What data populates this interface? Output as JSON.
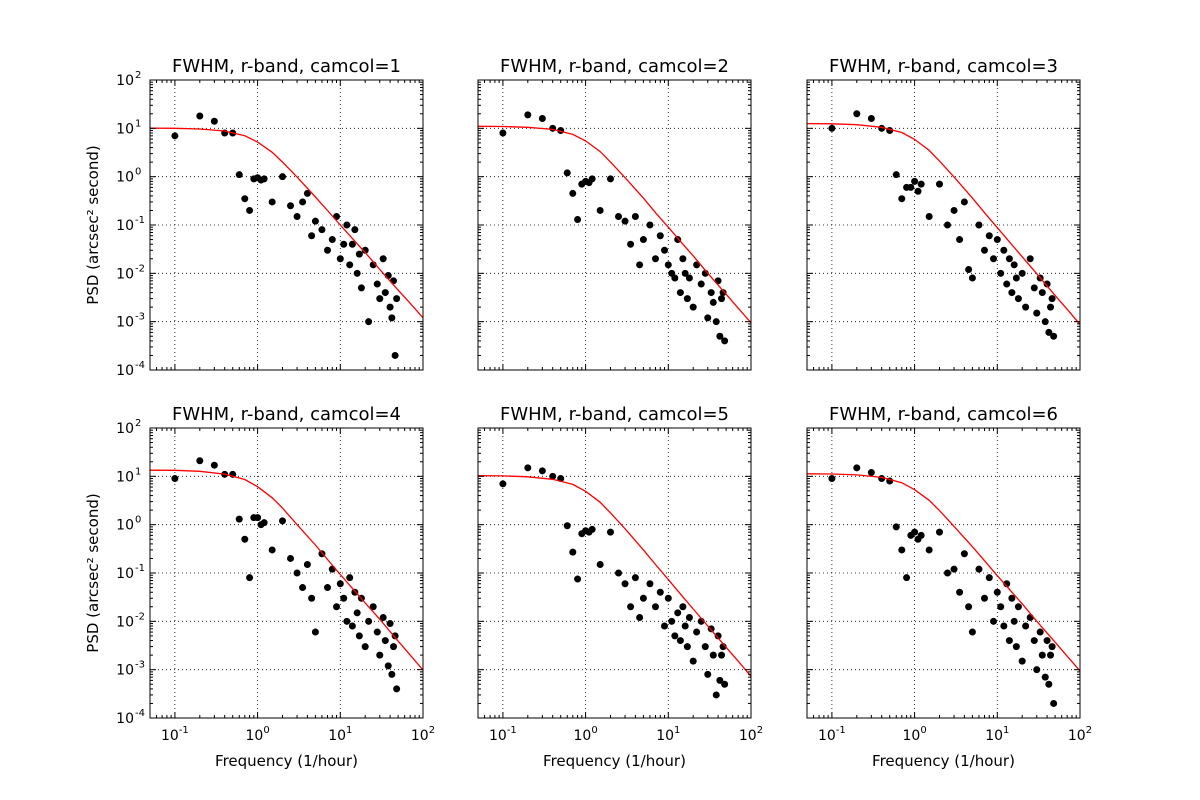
{
  "chart_data": [
    {
      "type": "scatter",
      "title": "FWHM, r-band, camcol=1",
      "xlabel": "",
      "ylabel": "PSD (arcsec² second)",
      "xscale": "log",
      "yscale": "log",
      "xlim": [
        0.05,
        100
      ],
      "ylim": [
        0.0001,
        100
      ],
      "grid": true,
      "series": [
        {
          "x": [
            0.1,
            0.2,
            0.3,
            0.4,
            0.5,
            0.6,
            0.7,
            0.8,
            0.9,
            1.0,
            1.1,
            1.2,
            1.5,
            2.0,
            2.5,
            3.0,
            3.5,
            4.0,
            4.5,
            5.0,
            6.0,
            7.0,
            8.0,
            9.0,
            10,
            11,
            12,
            13,
            14,
            15,
            16,
            17,
            18,
            20,
            22,
            25,
            28,
            30,
            33,
            35,
            38,
            40,
            42,
            44,
            46,
            48
          ],
          "y": [
            7,
            18,
            14,
            8,
            8,
            1.1,
            0.35,
            0.2,
            0.9,
            0.95,
            0.85,
            0.9,
            0.3,
            1.0,
            0.25,
            0.15,
            0.3,
            0.45,
            0.06,
            0.12,
            0.08,
            0.03,
            0.05,
            0.15,
            0.02,
            0.04,
            0.1,
            0.015,
            0.04,
            0.08,
            0.01,
            0.025,
            0.005,
            0.03,
            0.001,
            0.015,
            0.006,
            0.003,
            0.02,
            0.004,
            0.009,
            0.002,
            0.0012,
            0.007,
            0.0002,
            0.003
          ]
        },
        {
          "name": "",
          "x": [
            0.05,
            0.1,
            0.2,
            0.4,
            0.7,
            1,
            1.5,
            2,
            3,
            5,
            7,
            10,
            15,
            20,
            30,
            50,
            70,
            100
          ],
          "y": [
            10.1,
            10,
            9.7,
            8.8,
            7,
            5.2,
            3.2,
            2.0,
            0.98,
            0.38,
            0.2,
            0.1,
            0.046,
            0.027,
            0.012,
            0.0045,
            0.0024,
            0.0012
          ]
        }
      ]
    },
    {
      "type": "scatter",
      "title": "FWHM, r-band, camcol=2",
      "xlabel": "",
      "ylabel": "",
      "xscale": "log",
      "yscale": "log",
      "xlim": [
        0.05,
        100
      ],
      "ylim": [
        0.0001,
        100
      ],
      "grid": true,
      "series": [
        {
          "x": [
            0.1,
            0.2,
            0.3,
            0.4,
            0.5,
            0.6,
            0.7,
            0.8,
            0.9,
            1.0,
            1.1,
            1.2,
            1.5,
            2.0,
            2.5,
            3.0,
            3.5,
            4.0,
            4.5,
            5.0,
            6.0,
            7.0,
            8.0,
            9.0,
            10,
            11,
            12,
            13,
            14,
            15,
            16,
            17,
            18,
            20,
            22,
            25,
            28,
            30,
            33,
            35,
            38,
            40,
            42,
            44,
            46,
            48
          ],
          "y": [
            8,
            19,
            16,
            10,
            9,
            1.2,
            0.45,
            0.13,
            0.7,
            0.8,
            0.75,
            0.9,
            0.2,
            0.9,
            0.15,
            0.12,
            0.04,
            0.15,
            0.015,
            0.05,
            0.1,
            0.02,
            0.06,
            0.03,
            0.015,
            0.01,
            0.008,
            0.05,
            0.004,
            0.02,
            0.01,
            0.003,
            0.008,
            0.002,
            0.015,
            0.006,
            0.01,
            0.0012,
            0.004,
            0.0025,
            0.001,
            0.007,
            0.0005,
            0.003,
            0.004,
            0.0004
          ]
        },
        {
          "name": "",
          "x": [
            0.05,
            0.1,
            0.2,
            0.4,
            0.7,
            1,
            1.5,
            2,
            3,
            5,
            7,
            10,
            15,
            20,
            30,
            50,
            70,
            100
          ],
          "y": [
            11,
            10.9,
            10.5,
            9.5,
            7.5,
            5.5,
            3.3,
            2.0,
            0.95,
            0.36,
            0.18,
            0.09,
            0.04,
            0.023,
            0.01,
            0.0037,
            0.0019,
            0.00095
          ]
        }
      ]
    },
    {
      "type": "scatter",
      "title": "FWHM, r-band, camcol=3",
      "xlabel": "",
      "ylabel": "",
      "xscale": "log",
      "yscale": "log",
      "xlim": [
        0.05,
        100
      ],
      "ylim": [
        0.0001,
        100
      ],
      "grid": true,
      "series": [
        {
          "x": [
            0.1,
            0.2,
            0.3,
            0.4,
            0.5,
            0.6,
            0.7,
            0.8,
            0.9,
            1.0,
            1.1,
            1.2,
            1.5,
            2.0,
            2.5,
            3.0,
            3.5,
            4.0,
            4.5,
            5.0,
            6.0,
            7.0,
            8.0,
            9.0,
            10,
            11,
            12,
            13,
            14,
            15,
            16,
            17,
            18,
            20,
            22,
            25,
            28,
            30,
            33,
            35,
            38,
            40,
            42,
            44,
            46,
            48
          ],
          "y": [
            10,
            20,
            16,
            10,
            9,
            1.1,
            0.35,
            0.6,
            0.6,
            0.8,
            0.5,
            0.7,
            0.15,
            0.7,
            0.1,
            0.2,
            0.05,
            0.3,
            0.012,
            0.008,
            0.1,
            0.03,
            0.06,
            0.02,
            0.05,
            0.01,
            0.03,
            0.006,
            0.02,
            0.004,
            0.015,
            0.008,
            0.003,
            0.01,
            0.002,
            0.02,
            0.005,
            0.0015,
            0.008,
            0.004,
            0.001,
            0.006,
            0.0006,
            0.002,
            0.003,
            0.0005
          ]
        },
        {
          "name": "",
          "x": [
            0.05,
            0.1,
            0.2,
            0.4,
            0.7,
            1,
            1.5,
            2,
            3,
            5,
            7,
            10,
            15,
            20,
            30,
            50,
            70,
            100
          ],
          "y": [
            12.5,
            12.4,
            11.9,
            10.5,
            8.2,
            5.9,
            3.5,
            2.1,
            0.98,
            0.36,
            0.18,
            0.088,
            0.039,
            0.022,
            0.0098,
            0.0035,
            0.0018,
            0.00088
          ]
        }
      ]
    },
    {
      "type": "scatter",
      "title": "FWHM, r-band, camcol=4",
      "xlabel": "Frequency (1/hour)",
      "ylabel": "PSD (arcsec² second)",
      "xscale": "log",
      "yscale": "log",
      "xlim": [
        0.05,
        100
      ],
      "ylim": [
        0.0001,
        100
      ],
      "grid": true,
      "series": [
        {
          "x": [
            0.1,
            0.2,
            0.3,
            0.4,
            0.5,
            0.6,
            0.7,
            0.8,
            0.9,
            1.0,
            1.1,
            1.2,
            1.5,
            2.0,
            2.5,
            3.0,
            3.5,
            4.0,
            4.5,
            5.0,
            6.0,
            7.0,
            8.0,
            9.0,
            10,
            11,
            12,
            13,
            14,
            15,
            16,
            17,
            18,
            20,
            22,
            25,
            28,
            30,
            33,
            35,
            38,
            40,
            42,
            44,
            46,
            48
          ],
          "y": [
            9,
            21,
            17,
            11,
            11,
            1.3,
            0.5,
            0.08,
            1.4,
            1.4,
            1.0,
            1.1,
            0.3,
            1.2,
            0.2,
            0.1,
            0.05,
            0.15,
            0.03,
            0.006,
            0.25,
            0.05,
            0.12,
            0.02,
            0.06,
            0.03,
            0.01,
            0.08,
            0.008,
            0.04,
            0.015,
            0.005,
            0.03,
            0.003,
            0.01,
            0.02,
            0.006,
            0.002,
            0.012,
            0.004,
            0.0012,
            0.009,
            0.0008,
            0.003,
            0.005,
            0.0004
          ]
        },
        {
          "name": "",
          "x": [
            0.05,
            0.1,
            0.2,
            0.4,
            0.7,
            1,
            1.5,
            2,
            3,
            5,
            7,
            10,
            15,
            20,
            30,
            50,
            70,
            100
          ],
          "y": [
            13.4,
            13.3,
            12.7,
            11.1,
            8.6,
            6.1,
            3.6,
            2.2,
            1.0,
            0.38,
            0.19,
            0.093,
            0.042,
            0.024,
            0.011,
            0.0039,
            0.002,
            0.00098
          ]
        }
      ]
    },
    {
      "type": "scatter",
      "title": "FWHM, r-band, camcol=5",
      "xlabel": "Frequency (1/hour)",
      "ylabel": "",
      "xscale": "log",
      "yscale": "log",
      "xlim": [
        0.05,
        100
      ],
      "ylim": [
        0.0001,
        100
      ],
      "grid": true,
      "series": [
        {
          "x": [
            0.1,
            0.2,
            0.3,
            0.4,
            0.5,
            0.6,
            0.7,
            0.8,
            0.9,
            1.0,
            1.1,
            1.2,
            1.5,
            2.0,
            2.5,
            3.0,
            3.5,
            4.0,
            4.5,
            5.0,
            6.0,
            7.0,
            8.0,
            9.0,
            10,
            11,
            12,
            13,
            14,
            15,
            16,
            17,
            18,
            20,
            22,
            25,
            28,
            30,
            33,
            35,
            38,
            40,
            42,
            44,
            46,
            48
          ],
          "y": [
            7,
            15,
            13,
            10,
            9,
            0.95,
            0.27,
            0.075,
            0.65,
            0.75,
            0.7,
            0.8,
            0.15,
            0.7,
            0.1,
            0.06,
            0.02,
            0.08,
            0.012,
            0.03,
            0.06,
            0.02,
            0.04,
            0.008,
            0.03,
            0.01,
            0.005,
            0.015,
            0.004,
            0.02,
            0.008,
            0.003,
            0.012,
            0.0015,
            0.006,
            0.01,
            0.003,
            0.0008,
            0.007,
            0.002,
            0.0003,
            0.005,
            0.0006,
            0.002,
            0.003,
            0.0005
          ]
        },
        {
          "name": "",
          "x": [
            0.05,
            0.1,
            0.2,
            0.4,
            0.7,
            1,
            1.5,
            2,
            3,
            5,
            7,
            10,
            15,
            20,
            30,
            50,
            70,
            100
          ],
          "y": [
            10.3,
            10.2,
            9.8,
            8.7,
            6.8,
            4.9,
            2.9,
            1.75,
            0.82,
            0.3,
            0.15,
            0.073,
            0.032,
            0.018,
            0.008,
            0.0029,
            0.0015,
            0.00073
          ]
        }
      ]
    },
    {
      "type": "scatter",
      "title": "FWHM, r-band, camcol=6",
      "xlabel": "Frequency (1/hour)",
      "ylabel": "",
      "xscale": "log",
      "yscale": "log",
      "xlim": [
        0.05,
        100
      ],
      "ylim": [
        0.0001,
        100
      ],
      "grid": true,
      "series": [
        {
          "x": [
            0.1,
            0.2,
            0.3,
            0.4,
            0.5,
            0.6,
            0.7,
            0.8,
            0.9,
            1.0,
            1.1,
            1.2,
            1.5,
            2.0,
            2.5,
            3.0,
            3.5,
            4.0,
            4.5,
            5.0,
            6.0,
            7.0,
            8.0,
            9.0,
            10,
            11,
            12,
            13,
            14,
            15,
            16,
            17,
            18,
            20,
            22,
            25,
            28,
            30,
            33,
            35,
            38,
            40,
            42,
            44,
            46,
            48
          ],
          "y": [
            9,
            15,
            12,
            9,
            8,
            0.9,
            0.3,
            0.08,
            0.6,
            0.7,
            0.5,
            0.6,
            0.3,
            0.7,
            0.1,
            0.12,
            0.04,
            0.25,
            0.02,
            0.006,
            0.12,
            0.03,
            0.08,
            0.01,
            0.04,
            0.02,
            0.008,
            0.06,
            0.004,
            0.03,
            0.01,
            0.003,
            0.02,
            0.0015,
            0.008,
            0.012,
            0.004,
            0.001,
            0.006,
            0.002,
            0.0007,
            0.004,
            0.0005,
            0.002,
            0.003,
            0.0002
          ]
        },
        {
          "name": "",
          "x": [
            0.05,
            0.1,
            0.2,
            0.4,
            0.7,
            1,
            1.5,
            2,
            3,
            5,
            7,
            10,
            15,
            20,
            30,
            50,
            70,
            100
          ],
          "y": [
            11.3,
            11.2,
            10.7,
            9.5,
            7.4,
            5.3,
            3.2,
            1.95,
            0.92,
            0.35,
            0.18,
            0.088,
            0.04,
            0.023,
            0.01,
            0.0037,
            0.0019,
            0.00094
          ]
        }
      ]
    }
  ],
  "ticks": {
    "x": [
      {
        "value": 0.1,
        "base": "10",
        "exp": "-1"
      },
      {
        "value": 1,
        "base": "10",
        "exp": "0"
      },
      {
        "value": 10,
        "base": "10",
        "exp": "1"
      },
      {
        "value": 100,
        "base": "10",
        "exp": "2"
      }
    ],
    "y": [
      {
        "value": 0.0001,
        "base": "10",
        "exp": "-4"
      },
      {
        "value": 0.001,
        "base": "10",
        "exp": "-3"
      },
      {
        "value": 0.01,
        "base": "10",
        "exp": "-2"
      },
      {
        "value": 0.1,
        "base": "10",
        "exp": "-1"
      },
      {
        "value": 1,
        "base": "10",
        "exp": "0"
      },
      {
        "value": 10,
        "base": "10",
        "exp": "1"
      },
      {
        "value": 100,
        "base": "10",
        "exp": "2"
      }
    ]
  },
  "colors": {
    "points": "#000000",
    "fit_line": "#ff0000"
  }
}
